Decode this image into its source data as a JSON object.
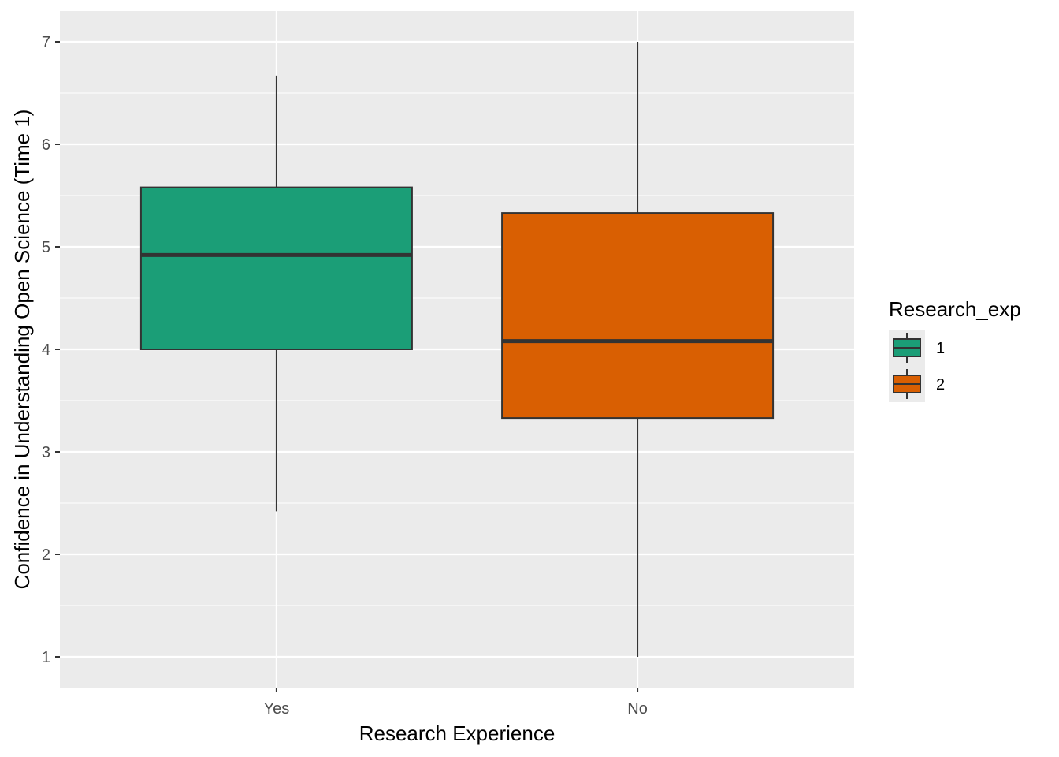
{
  "chart_data": {
    "type": "boxplot",
    "xlabel": "Research Experience",
    "ylabel": "Confidence in Understanding Open Science (Time 1)",
    "categories": [
      "Yes",
      "No"
    ],
    "ylim": [
      0.7,
      7.3
    ],
    "yticks": [
      1,
      2,
      3,
      4,
      5,
      6,
      7
    ],
    "ytick_labels": [
      "1",
      "2",
      "3",
      "4",
      "5",
      "6",
      "7"
    ],
    "grid": true,
    "legend": {
      "title": "Research_exp",
      "position": "right",
      "entries": [
        {
          "label": "1",
          "color": "#1b9e77"
        },
        {
          "label": "2",
          "color": "#d95f02"
        }
      ]
    },
    "boxes": [
      {
        "category": "Yes",
        "group": "1",
        "min": 2.42,
        "q1": 4.0,
        "median": 4.92,
        "q3": 5.58,
        "max": 6.67,
        "color": "#1b9e77"
      },
      {
        "category": "No",
        "group": "2",
        "min": 1.0,
        "q1": 3.33,
        "median": 4.08,
        "q3": 5.33,
        "max": 7.0,
        "color": "#d95f02"
      }
    ]
  },
  "colors": {
    "panel_bg": "#ebebeb",
    "grid_line": "#ffffff",
    "box_outline": "#333333",
    "tick_text": "#4d4d4d"
  }
}
